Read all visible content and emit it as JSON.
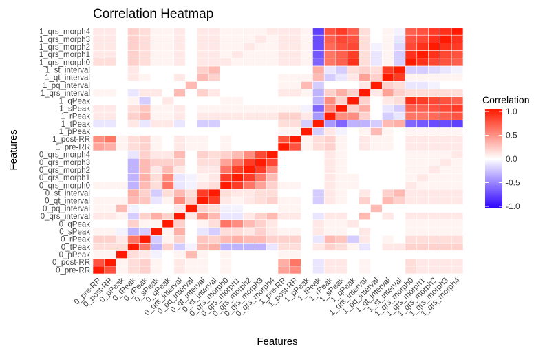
{
  "chart_data": {
    "type": "heatmap",
    "title": "Correlation Heatmap",
    "xlabel": "Features",
    "ylabel": "Features",
    "features": [
      "0_pre-RR",
      "0_post-RR",
      "0_pPeak",
      "0_tPeak",
      "0_rPeak",
      "0_sPeak",
      "0_qPeak",
      "0_qrs_interval",
      "0_pq_interval",
      "0_qt_interval",
      "0_st_interval",
      "0_qrs_morph0",
      "0_qrs_morph1",
      "0_qrs_morph2",
      "0_qrs_morph3",
      "0_qrs_morph4",
      "1_pre-RR",
      "1_post-RR",
      "1_pPeak",
      "1_tPeak",
      "1_rPeak",
      "1_sPeak",
      "1_qPeak",
      "1_qrs_interval",
      "1_pq_interval",
      "1_qt_interval",
      "1_st_interval",
      "1_qrs_morph0",
      "1_qrs_morph1",
      "1_qrs_morph2",
      "1_qrs_morph3",
      "1_qrs_morph4"
    ],
    "legend": {
      "title": "Correlation",
      "ticks": [
        "1.0",
        "0.5",
        "0.0",
        "-0.5",
        "-1.0"
      ],
      "values": [
        1.0,
        0.5,
        0.0,
        -0.5,
        -1.0
      ],
      "range": [
        -1,
        1
      ]
    },
    "colors": {
      "low": "#2b00ff",
      "mid": "#ffffff",
      "high": "#ff1a00"
    },
    "matrix": [
      [
        1,
        0.75,
        0.05,
        0.15,
        0.2,
        0.05,
        0,
        0.1,
        0.05,
        0.05,
        0,
        0.05,
        0,
        0,
        0,
        0,
        0.4,
        0.5,
        0,
        -0.1,
        0.1,
        0.1,
        0,
        0.05,
        0,
        0,
        0,
        0.15,
        0.1,
        0.1,
        0.1,
        0.1
      ],
      [
        0.75,
        1,
        0.05,
        0.15,
        0.2,
        0.05,
        0,
        0.1,
        0.05,
        0.05,
        0,
        0.05,
        0,
        0,
        0,
        0,
        0.35,
        0.6,
        0,
        -0.1,
        0.1,
        0.1,
        0,
        0.05,
        0,
        0,
        0,
        0.15,
        0.1,
        0.1,
        0.1,
        0.1
      ],
      [
        0.05,
        0.05,
        1,
        0.15,
        0.1,
        -0.05,
        0,
        0.05,
        0.3,
        0.05,
        0,
        0.05,
        0,
        0,
        0,
        0,
        0.05,
        0.05,
        0,
        0,
        0,
        0,
        0,
        0,
        0,
        0,
        0,
        0,
        0,
        0,
        0,
        0
      ],
      [
        0.15,
        0.15,
        0.15,
        1,
        0.6,
        -0.3,
        0.2,
        -0.2,
        -0.05,
        0.3,
        0.35,
        -0.3,
        -0.3,
        -0.3,
        -0.3,
        -0.1,
        0.15,
        0.15,
        0,
        0.1,
        0.2,
        0.15,
        0.05,
        -0.1,
        0,
        0.1,
        0.1,
        0.2,
        0.2,
        0.2,
        0.2,
        0.2
      ],
      [
        0.2,
        0.2,
        0.1,
        0.6,
        1,
        -0.2,
        0.05,
        0.2,
        0,
        0.25,
        0.2,
        0.3,
        0.35,
        0.3,
        0.3,
        0.2,
        0.2,
        0.2,
        0,
        -0.1,
        0.3,
        0.25,
        -0.2,
        0.1,
        0,
        0.05,
        0,
        0.15,
        0.15,
        0.15,
        0.15,
        0.15
      ],
      [
        0.05,
        0.05,
        -0.05,
        -0.3,
        -0.2,
        1,
        0.05,
        0.35,
        0,
        -0.1,
        -0.2,
        0.15,
        0.15,
        0.1,
        0.2,
        0.1,
        0.05,
        0.05,
        0,
        0.1,
        0.05,
        0.05,
        0,
        0.1,
        0,
        0,
        0,
        0.05,
        0.05,
        0.05,
        0.05,
        0.05
      ],
      [
        0,
        0,
        0,
        0.2,
        0.05,
        0.05,
        1,
        0.2,
        0,
        0.05,
        0.15,
        0.6,
        0.5,
        0.3,
        0.2,
        0.1,
        0,
        0,
        0,
        0.1,
        0.05,
        0.05,
        0.1,
        0,
        0,
        0,
        0,
        0.05,
        0.05,
        0.05,
        0.05,
        0.05
      ],
      [
        0.1,
        0.1,
        0.05,
        -0.2,
        0.2,
        0.35,
        0.2,
        1,
        0.1,
        0.5,
        0.3,
        -0.1,
        -0.1,
        0.1,
        0.2,
        0.3,
        0.1,
        0.1,
        0,
        -0.1,
        0.1,
        0.1,
        0,
        0.3,
        0,
        0.1,
        0,
        0.1,
        0.1,
        0.1,
        0.1,
        0.1
      ],
      [
        0.05,
        0.05,
        0.3,
        -0.05,
        0,
        0,
        0,
        0.1,
        1,
        0.2,
        0.15,
        -0.05,
        -0.05,
        0,
        0,
        0,
        0.05,
        0.05,
        0,
        0,
        0,
        0,
        0,
        0,
        0.3,
        0,
        0,
        0,
        0,
        0,
        0,
        0
      ],
      [
        0.05,
        0.05,
        0.05,
        0.3,
        0.25,
        -0.1,
        0.05,
        0.5,
        0.2,
        1,
        0.85,
        0.1,
        0.05,
        0.1,
        0.15,
        0.2,
        0.05,
        0.05,
        0,
        -0.2,
        0.1,
        0.05,
        0,
        0.2,
        0,
        0.3,
        0.2,
        0.1,
        0.1,
        0.1,
        0.1,
        0.1
      ],
      [
        0,
        0,
        0,
        0.35,
        0.2,
        -0.2,
        0.15,
        0.3,
        0.15,
        0.85,
        1,
        0.15,
        0.1,
        0.1,
        0.15,
        0.15,
        0,
        0,
        0,
        -0.2,
        0.1,
        0.05,
        0,
        0.1,
        0,
        0.2,
        0.3,
        0.1,
        0.1,
        0.1,
        0.1,
        0.1
      ],
      [
        0.05,
        0.05,
        0.05,
        -0.3,
        0.3,
        0.15,
        0.6,
        -0.1,
        -0.05,
        0.1,
        0.15,
        1,
        0.85,
        0.6,
        0.4,
        0.2,
        0.05,
        0.05,
        0,
        0,
        0.1,
        0.05,
        0.05,
        0,
        0,
        0,
        0,
        0.1,
        0.05,
        0.05,
        0.05,
        0.05
      ],
      [
        0,
        0,
        0,
        -0.3,
        0.35,
        0.15,
        0.5,
        -0.1,
        -0.05,
        0.05,
        0.1,
        0.85,
        1,
        0.85,
        0.6,
        0.3,
        0,
        0,
        0,
        0,
        0.1,
        0.05,
        0.05,
        0,
        0,
        0,
        0,
        0.05,
        0.1,
        0.05,
        0.05,
        0.05
      ],
      [
        0,
        0,
        0,
        -0.3,
        0.3,
        0.1,
        0.3,
        0.1,
        0,
        0.1,
        0.1,
        0.6,
        0.85,
        1,
        0.85,
        0.5,
        0,
        0,
        0,
        0,
        0.1,
        0.05,
        0,
        0,
        0,
        0,
        0,
        0.05,
        0.05,
        0.1,
        0.05,
        0.05
      ],
      [
        0,
        0,
        0,
        -0.3,
        0.3,
        0.2,
        0.2,
        0.2,
        0,
        0.15,
        0.15,
        0.4,
        0.6,
        0.85,
        1,
        0.8,
        0,
        0,
        0,
        0,
        0.1,
        0.05,
        0,
        0,
        0,
        0,
        0,
        0.05,
        0.05,
        0.05,
        0.1,
        0.05
      ],
      [
        0,
        0,
        0,
        -0.1,
        0.2,
        0.1,
        0.1,
        0.3,
        0,
        0.2,
        0.15,
        0.2,
        0.3,
        0.5,
        0.8,
        1,
        0,
        0,
        0,
        0,
        0.1,
        0.05,
        0,
        0,
        0,
        0,
        0,
        0.05,
        0.05,
        0.05,
        0.05,
        0.1
      ],
      [
        0.4,
        0.35,
        0.05,
        0.15,
        0.2,
        0.05,
        0,
        0.1,
        0.05,
        0.05,
        0,
        0.05,
        0,
        0,
        0,
        0,
        1,
        0.75,
        0.05,
        0.15,
        0.2,
        0.05,
        0,
        0.1,
        0.05,
        0.05,
        0,
        0.1,
        0.1,
        0.1,
        0.1,
        0.1
      ],
      [
        0.5,
        0.6,
        0.05,
        0.15,
        0.2,
        0.05,
        0,
        0.1,
        0.05,
        0.05,
        0,
        0.05,
        0,
        0,
        0,
        0,
        0.75,
        1,
        0.05,
        0.15,
        0.2,
        0.05,
        0,
        0.1,
        0.05,
        0.05,
        0,
        0.1,
        0.1,
        0.1,
        0.1,
        0.1
      ],
      [
        0,
        0,
        0,
        0,
        0,
        0,
        0,
        0,
        0,
        0,
        0,
        0,
        0,
        0,
        0,
        0,
        0.05,
        0.05,
        1,
        -0.2,
        0.1,
        -0.05,
        0,
        0.05,
        0.3,
        0.05,
        0,
        0.05,
        0.05,
        0.05,
        0.05,
        0.05
      ],
      [
        -0.1,
        -0.1,
        0,
        0.1,
        -0.1,
        0.1,
        0.1,
        -0.1,
        0,
        -0.2,
        -0.2,
        0,
        0,
        0,
        0,
        0,
        0.15,
        0.15,
        -0.2,
        1,
        -0.4,
        -0.6,
        -0.3,
        -0.3,
        -0.2,
        0.3,
        0.35,
        -0.6,
        -0.65,
        -0.7,
        -0.7,
        -0.75
      ],
      [
        0.1,
        0.1,
        0,
        0.2,
        0.3,
        0.05,
        0.05,
        0.1,
        0,
        0.1,
        0.1,
        0.1,
        0.1,
        0.1,
        0.1,
        0.1,
        0.2,
        0.2,
        0.1,
        -0.4,
        1,
        0.5,
        0.5,
        0.2,
        0,
        -0.2,
        -0.1,
        0.6,
        0.6,
        0.65,
        0.7,
        0.75
      ],
      [
        0.1,
        0.1,
        0,
        0.15,
        0.25,
        0.05,
        0.05,
        0.1,
        0,
        0.05,
        0.05,
        0.05,
        0.05,
        0.05,
        0.05,
        0.05,
        0.05,
        0.05,
        -0.05,
        -0.6,
        0.5,
        1,
        0.2,
        0.35,
        0,
        -0.1,
        -0.2,
        0.7,
        0.7,
        0.75,
        0.8,
        0.85
      ],
      [
        0,
        0,
        0,
        0.05,
        -0.2,
        0,
        0.1,
        0,
        0,
        0,
        0,
        0.05,
        0.05,
        0,
        0,
        0,
        0,
        0,
        0,
        -0.3,
        0.5,
        0.2,
        1,
        0.2,
        0,
        0.1,
        0.15,
        0.9,
        0.85,
        0.8,
        0.75,
        0.7
      ],
      [
        0.05,
        0.05,
        0,
        -0.1,
        0.1,
        0.1,
        0,
        0.3,
        0,
        0.2,
        0.1,
        0,
        0,
        0,
        0,
        0,
        0.1,
        0.1,
        0.05,
        -0.3,
        0.2,
        0.35,
        0.2,
        1,
        0.1,
        0.4,
        0.2,
        0.15,
        0.15,
        0.15,
        0.15,
        0.15
      ],
      [
        0,
        0,
        0,
        0,
        0,
        0,
        0,
        0,
        0.3,
        0,
        0,
        0,
        0,
        0,
        0,
        0,
        0.05,
        0.05,
        0.3,
        -0.2,
        0,
        0,
        0,
        0.1,
        1,
        0.2,
        0.15,
        -0.1,
        -0.1,
        -0.05,
        0,
        0
      ],
      [
        0,
        0,
        0,
        0.1,
        0.05,
        0,
        0,
        0.1,
        0,
        0.3,
        0.2,
        0,
        0,
        0,
        0,
        0,
        0.05,
        0.05,
        0.05,
        0.3,
        -0.2,
        -0.1,
        0.1,
        0.4,
        0.2,
        1,
        0.85,
        0.05,
        0.05,
        0.05,
        0.05,
        0.05
      ],
      [
        0,
        0,
        0,
        0.1,
        0,
        0,
        0,
        0,
        0,
        0.2,
        0.3,
        0,
        0,
        0,
        0,
        0,
        0,
        0,
        0,
        0.35,
        -0.1,
        -0.2,
        0.15,
        0.2,
        0.15,
        0.85,
        1,
        -0.2,
        -0.2,
        -0.15,
        -0.1,
        -0.05
      ],
      [
        0.15,
        0.15,
        0,
        0.2,
        0.15,
        0.05,
        0.05,
        0.1,
        0,
        0.1,
        0.1,
        0.1,
        0.05,
        0.05,
        0.05,
        0.05,
        0.1,
        0.1,
        0.05,
        -0.6,
        0.6,
        0.7,
        0.9,
        0.15,
        -0.1,
        0.05,
        -0.2,
        1,
        0.9,
        0.8,
        0.75,
        0.7
      ],
      [
        0.1,
        0.1,
        0,
        0.2,
        0.15,
        0.05,
        0.05,
        0.1,
        0,
        0.1,
        0.1,
        0.05,
        0.1,
        0.05,
        0.05,
        0.05,
        0.1,
        0.1,
        0.05,
        -0.65,
        0.6,
        0.7,
        0.85,
        0.15,
        -0.1,
        0.05,
        -0.2,
        0.9,
        1,
        0.9,
        0.8,
        0.75
      ],
      [
        0.1,
        0.1,
        0,
        0.2,
        0.15,
        0.05,
        0.05,
        0.1,
        0,
        0.1,
        0.1,
        0.05,
        0.05,
        0.1,
        0.05,
        0.05,
        0.1,
        0.1,
        0.05,
        -0.7,
        0.65,
        0.75,
        0.8,
        0.15,
        -0.05,
        0.05,
        -0.15,
        0.8,
        0.9,
        1,
        0.9,
        0.85
      ],
      [
        0.1,
        0.1,
        0,
        0.2,
        0.15,
        0.05,
        0.05,
        0.1,
        0,
        0.1,
        0.1,
        0.05,
        0.05,
        0.05,
        0.1,
        0.05,
        0.1,
        0.1,
        0.05,
        -0.7,
        0.7,
        0.8,
        0.75,
        0.15,
        0,
        0.05,
        -0.1,
        0.75,
        0.8,
        0.9,
        1,
        0.9
      ],
      [
        0.1,
        0.1,
        0,
        0.2,
        0.15,
        0.05,
        0.05,
        0.1,
        0,
        0.1,
        0.1,
        0.05,
        0.05,
        0.05,
        0.05,
        0.1,
        0.1,
        0.1,
        0.05,
        -0.75,
        0.75,
        0.85,
        0.7,
        0.15,
        0,
        0.05,
        -0.05,
        0.7,
        0.75,
        0.85,
        0.9,
        1
      ]
    ]
  }
}
